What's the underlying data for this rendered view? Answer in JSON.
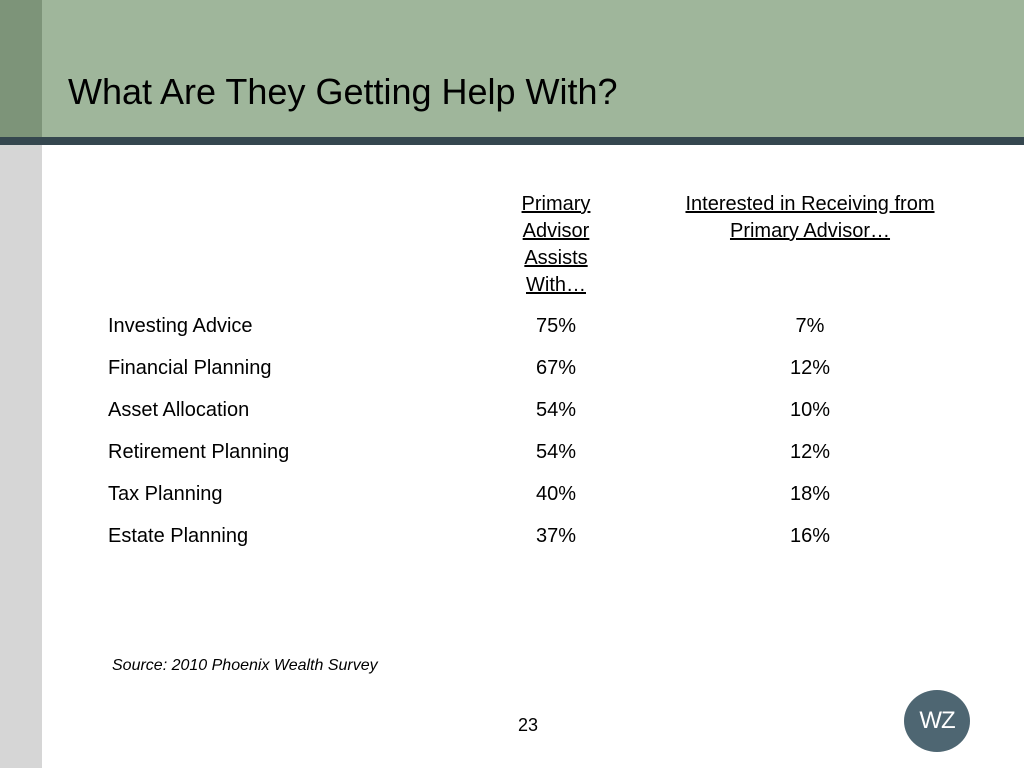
{
  "slide": {
    "title": "What Are They Getting Help With?",
    "page_number": "23",
    "source": "Source: 2010 Phoenix Wealth Survey",
    "logo_text": "WZ"
  },
  "colors": {
    "title_band": "#9fb69b",
    "title_rule": "#35474f",
    "side_bar": "#d6d6d6",
    "logo": "#4e6672"
  },
  "table": {
    "headers": [
      {
        "line1": "Primary Advisor",
        "line2": "Assists With…"
      },
      {
        "line1": "Interested in Receiving from",
        "line2": "Primary Advisor…"
      }
    ],
    "rows": [
      {
        "label": "Investing Advice",
        "primary": "75%",
        "interested": "7%"
      },
      {
        "label": "Financial Planning",
        "primary": "67%",
        "interested": "12%"
      },
      {
        "label": "Asset Allocation",
        "primary": "54%",
        "interested": "10%"
      },
      {
        "label": "Retirement Planning",
        "primary": "54%",
        "interested": "12%"
      },
      {
        "label": "Tax Planning",
        "primary": "40%",
        "interested": "18%"
      },
      {
        "label": "Estate Planning",
        "primary": "37%",
        "interested": "16%"
      }
    ]
  }
}
